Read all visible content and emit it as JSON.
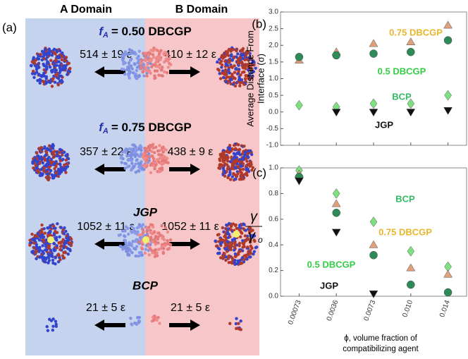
{
  "panel_a": {
    "label": "(a)",
    "headers": [
      "A Domain",
      "B Domain"
    ],
    "rows": [
      {
        "title": {
          "prefix": "f",
          "sub": "A",
          "rest": "= 0.50 DBCGP"
        },
        "left": "514 ± 19 ε",
        "right": "410 ± 12 ε"
      },
      {
        "title": {
          "prefix": "f",
          "sub": "A",
          "rest": "= 0.75 DBCGP"
        },
        "left": "357 ± 22  ε",
        "right": "438 ± 9  ε"
      },
      {
        "title": {
          "text": "JGP"
        },
        "left": "1052 ± 11 ε",
        "right": "1052 ± 11 ε"
      },
      {
        "title": {
          "text": "BCP"
        },
        "left": "21 ± 5 ε",
        "right": "21 ± 5  ε"
      }
    ]
  },
  "chart_data": [
    {
      "type": "scatter",
      "panel": "(b)",
      "ylabel": [
        "Average Distance From",
        "Interface (σ)"
      ],
      "categories": [
        "0.00073",
        "0.0036",
        "0.0073",
        "0.010",
        "0.014"
      ],
      "ylim": [
        -1.0,
        3.0
      ],
      "yticks": [
        {
          "value": -1.0,
          "label": "-1.0"
        },
        {
          "value": -0.5,
          "label": "-0.5"
        },
        {
          "value": 0,
          "label": "0.0"
        },
        {
          "value": 0.5,
          "label": "0.5"
        },
        {
          "value": 1.0,
          "label": "1.0"
        },
        {
          "value": 1.5,
          "label": "1.5"
        },
        {
          "value": 2.0,
          "label": "2.0"
        },
        {
          "value": 2.5,
          "label": "2.5"
        },
        {
          "value": 3.0,
          "label": "3.0"
        }
      ],
      "series": [
        {
          "name": "0.75 DBCGP",
          "color": "#e0a07c",
          "label_color": "#e8b62c",
          "marker": "triangle-up",
          "values": [
            1.55,
            1.8,
            2.05,
            2.1,
            2.6
          ]
        },
        {
          "name": "0.5 DBCGP",
          "color": "#2e8b57",
          "label_color": "#33cc44",
          "marker": "circle",
          "values": [
            1.65,
            1.7,
            1.75,
            1.8,
            2.15
          ]
        },
        {
          "name": "BCP",
          "color": "#7ee07e",
          "label_color": "#33bb66",
          "marker": "diamond",
          "values": [
            0.2,
            0.15,
            0.25,
            0.25,
            0.5
          ]
        },
        {
          "name": "JGP",
          "color": "#111111",
          "label_color": "#111111",
          "marker": "triangle-down",
          "values": [
            null,
            0.0,
            0.0,
            0.0,
            0.05
          ]
        }
      ]
    },
    {
      "type": "scatter",
      "panel": "(c)",
      "ylabel_fraction": [
        "γ",
        "γ",
        "o"
      ],
      "xlabel": [
        "ϕ, volume fraction of",
        "compatibilizing agent"
      ],
      "categories": [
        "0.00073",
        "0.0036",
        "0.0073",
        "0.010",
        "0.014"
      ],
      "ylim": [
        0,
        1.0
      ],
      "yticks": [
        {
          "value": 0,
          "label": "0.0"
        },
        {
          "value": 0.2,
          "label": "0.2"
        },
        {
          "value": 0.4,
          "label": "0.4"
        },
        {
          "value": 0.6,
          "label": "0.6"
        },
        {
          "value": 0.8,
          "label": "0.8"
        },
        {
          "value": 1.0,
          "label": "1.0"
        }
      ],
      "series": [
        {
          "name": "BCP",
          "color": "#7ee07e",
          "label_color": "#33bb66",
          "marker": "diamond",
          "values": [
            0.98,
            0.8,
            0.58,
            0.35,
            0.23
          ]
        },
        {
          "name": "0.75 DBCGP",
          "color": "#e0a07c",
          "label_color": "#e8b62c",
          "marker": "triangle-up",
          "values": [
            0.95,
            0.72,
            0.4,
            0.22,
            0.17
          ]
        },
        {
          "name": "0.5 DBCGP",
          "color": "#2e8b57",
          "label_color": "#33cc44",
          "marker": "circle",
          "values": [
            0.93,
            0.65,
            0.32,
            0.09,
            0.03
          ]
        },
        {
          "name": "JGP",
          "color": "#111111",
          "label_color": "#111111",
          "marker": "triangle-down",
          "values": [
            0.9,
            0.5,
            0.02,
            null,
            null
          ]
        }
      ]
    }
  ]
}
